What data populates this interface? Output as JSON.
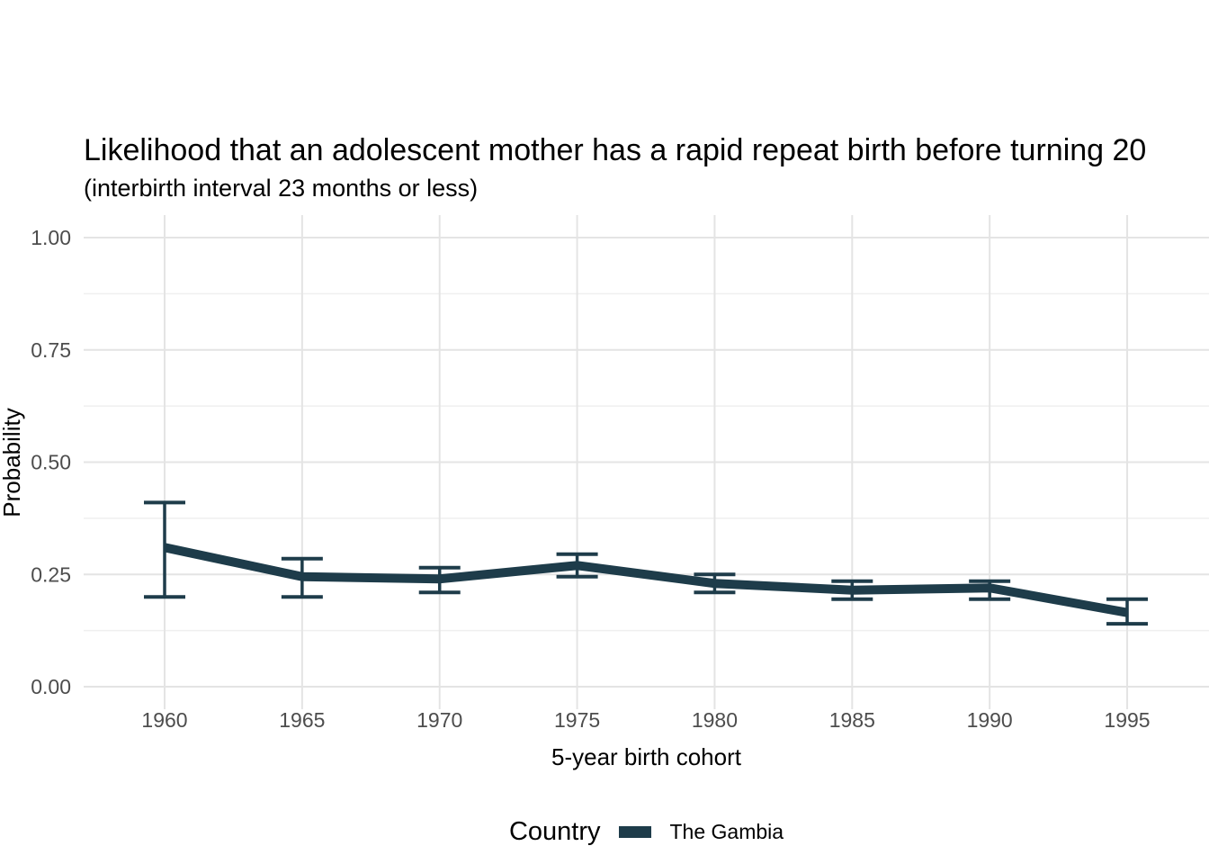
{
  "chart_data": {
    "type": "line",
    "title": "Likelihood that an adolescent mother has a rapid repeat birth before turning 20",
    "subtitle": "(interbirth interval 23 months or less)",
    "xlabel": "5-year birth cohort",
    "ylabel": "Probability",
    "x": [
      1960,
      1965,
      1970,
      1975,
      1980,
      1985,
      1990,
      1995
    ],
    "x_tick_labels": [
      "1960",
      "1965",
      "1970",
      "1975",
      "1980",
      "1985",
      "1990",
      "1995"
    ],
    "y_ticks": [
      0,
      0.25,
      0.5,
      0.75,
      1
    ],
    "y_tick_labels": [
      "0.00",
      "0.25",
      "0.50",
      "0.75",
      "1.00"
    ],
    "y_minor_ticks": [
      0.125,
      0.375,
      0.625,
      0.875
    ],
    "ylim": [
      0,
      1
    ],
    "grid": "horizontal major+minor, vertical major only",
    "error_bars": true,
    "series": [
      {
        "name": "The Gambia",
        "color": "#1e3c4a",
        "values": [
          0.31,
          0.245,
          0.24,
          0.27,
          0.23,
          0.215,
          0.22,
          0.165
        ],
        "ci_low": [
          0.2,
          0.2,
          0.21,
          0.245,
          0.21,
          0.195,
          0.195,
          0.14
        ],
        "ci_high": [
          0.41,
          0.285,
          0.265,
          0.295,
          0.25,
          0.235,
          0.235,
          0.195
        ]
      }
    ],
    "legend": {
      "title": "Country",
      "position": "bottom",
      "entries": [
        "The Gambia"
      ]
    }
  },
  "colors": {
    "background": "#ffffff",
    "grid_major": "#e4e4e4",
    "grid_minor": "#efefef",
    "tick_label": "#4d4d4d",
    "text": "#000000"
  }
}
